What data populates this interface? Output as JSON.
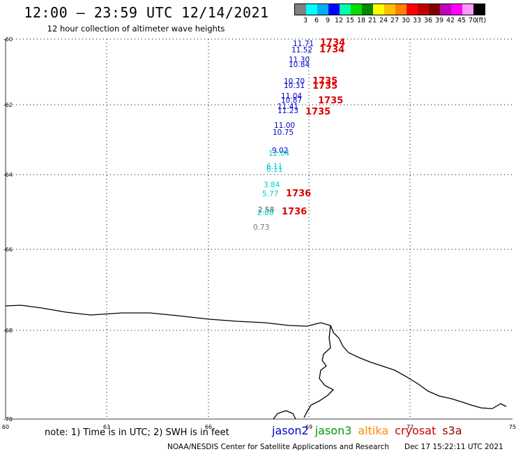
{
  "header": {
    "title": "12:00 – 23:59 UTC 12/14/2021",
    "subtitle": "12 hour collection of altimeter wave heights"
  },
  "color_legend": {
    "colors": [
      "#808080",
      "#00ffff",
      "#00b0f0",
      "#0000ff",
      "#00ffaa",
      "#00dd00",
      "#008800",
      "#ffff00",
      "#ffc000",
      "#ff8000",
      "#ff0000",
      "#c00000",
      "#800000",
      "#c000c0",
      "#ff00ff",
      "#ff99ff",
      "#000000"
    ],
    "labels": [
      "3",
      "6",
      "9",
      "12",
      "15",
      "18",
      "21",
      "24",
      "27",
      "30",
      "33",
      "36",
      "39",
      "42",
      "45",
      "70",
      "(ft)"
    ]
  },
  "axes": {
    "lat_labels": [
      "-60",
      "-62",
      "-64",
      "-66",
      "-68",
      "-70"
    ],
    "lon_labels": [
      "60",
      "63",
      "66",
      "69",
      "72",
      "75"
    ]
  },
  "wave_heights": [
    {
      "text": "11.71",
      "color": "#0000cc"
    },
    {
      "text": "11.52",
      "color": "#0000cc"
    },
    {
      "text": "11.30",
      "color": "#0000cc"
    },
    {
      "text": "10.84",
      "color": "#0000cc"
    },
    {
      "text": "10.70",
      "color": "#0000cc"
    },
    {
      "text": "10.31",
      "color": "#0000cc"
    },
    {
      "text": "11.04",
      "color": "#0000cc"
    },
    {
      "text": "10.87",
      "color": "#0000cc"
    },
    {
      "text": "11.41",
      "color": "#0000cc"
    },
    {
      "text": "11.23",
      "color": "#0000cc"
    },
    {
      "text": "11.00",
      "color": "#0000cc"
    },
    {
      "text": "10.75",
      "color": "#0000cc"
    },
    {
      "text": "9.02",
      "color": "#0000cc"
    },
    {
      "text": "12.04",
      "color": "#00cccc"
    },
    {
      "text": "6.11",
      "color": "#00cccc"
    },
    {
      "text": "6.11",
      "color": "#00cccc"
    },
    {
      "text": "3.84",
      "color": "#00cccc"
    },
    {
      "text": "5.77",
      "color": "#00cccc"
    },
    {
      "text": "2.58",
      "color": "#555555"
    },
    {
      "text": "2.88",
      "color": "#00cccc"
    },
    {
      "text": "0.73",
      "color": "#777777"
    }
  ],
  "time_labels": [
    {
      "text": "1734"
    },
    {
      "text": "1734"
    },
    {
      "text": "1735"
    },
    {
      "text": "1735"
    },
    {
      "text": "1735"
    },
    {
      "text": "1735"
    },
    {
      "text": "1736"
    },
    {
      "text": "1736"
    }
  ],
  "footer": {
    "note": "note: 1) Time is in UTC; 2) SWH is in feet",
    "satellites": [
      {
        "name": "jason2",
        "color": "#0000cc"
      },
      {
        "name": "jason3",
        "color": "#009900"
      },
      {
        "name": "altika",
        "color": "#ff8800"
      },
      {
        "name": "cryosat",
        "color": "#cc0000"
      },
      {
        "name": "s3a",
        "color": "#990000"
      }
    ],
    "credit": "NOAA/NESDIS Center for Satellite Applications and Research",
    "timestamp": "Dec 17 15:22:11 UTC 2021"
  }
}
